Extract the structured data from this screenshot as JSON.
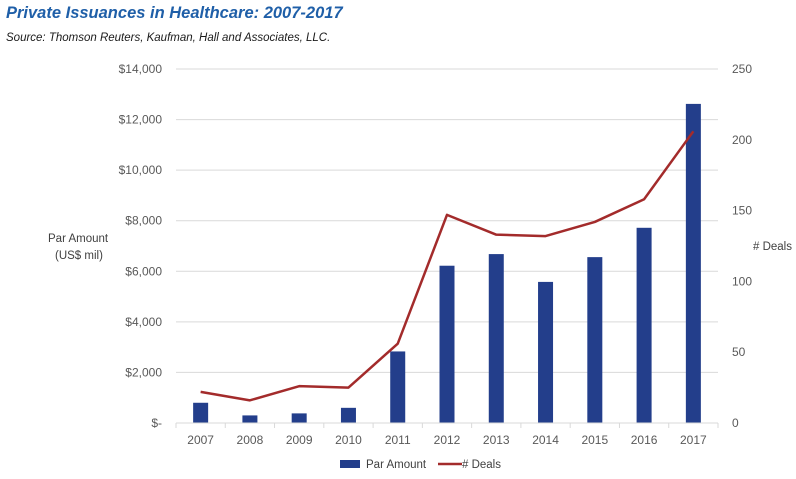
{
  "chart_data": {
    "type": "bar+line",
    "title": "Private Issuances in Healthcare: 2007-2017",
    "subtitle": "Source: Thomson Reuters, Kaufman, Hall and Associates, LLC.",
    "categories": [
      "2007",
      "2008",
      "2009",
      "2010",
      "2011",
      "2012",
      "2013",
      "2014",
      "2015",
      "2016",
      "2017"
    ],
    "series": [
      {
        "name": "Par Amount",
        "type": "bar",
        "axis": "left",
        "color": "#233e8b",
        "values": [
          800,
          300,
          380,
          600,
          2830,
          6220,
          6680,
          5580,
          6560,
          7720,
          12620
        ]
      },
      {
        "name": "# Deals",
        "type": "line",
        "axis": "right",
        "color": "#a32b2b",
        "values": [
          22,
          16,
          26,
          25,
          56,
          147,
          133,
          132,
          142,
          158,
          206
        ]
      }
    ],
    "y_left": {
      "label_lines": [
        "Par Amount",
        "(US$ mil)"
      ],
      "ylim": [
        0,
        14000
      ],
      "ticks": [
        0,
        2000,
        4000,
        6000,
        8000,
        10000,
        12000,
        14000
      ],
      "tick_labels": [
        "$-",
        "$2,000",
        "$4,000",
        "$6,000",
        "$8,000",
        "$10,000",
        "$12,000",
        "$14,000"
      ]
    },
    "y_right": {
      "label": "# Deals",
      "ylim": [
        0,
        250
      ],
      "ticks": [
        0,
        50,
        100,
        150,
        200,
        250
      ],
      "tick_labels": [
        "0",
        "50",
        "100",
        "150",
        "200",
        "250"
      ]
    },
    "grid": true,
    "legend_position": "bottom"
  },
  "legend": {
    "bar_label": "Par Amount",
    "line_label": "# Deals"
  }
}
